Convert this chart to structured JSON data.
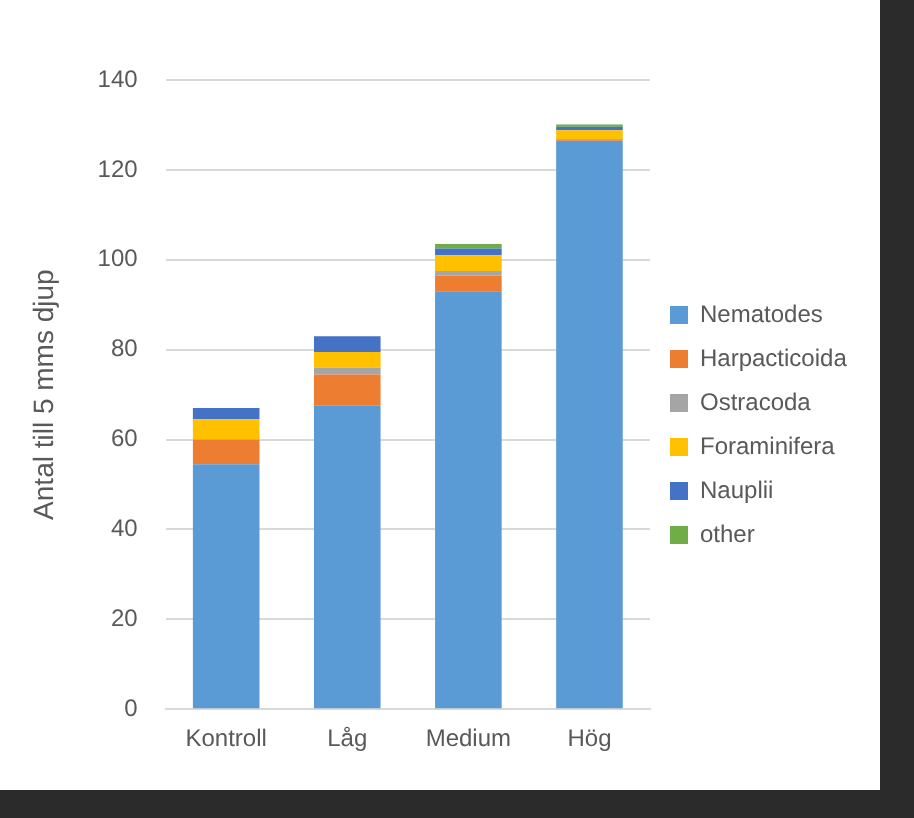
{
  "chart_data": {
    "type": "bar",
    "stacked": true,
    "ylabel": "Antal till 5 mms djup",
    "categories": [
      "Kontroll",
      "Låg",
      "Medium",
      "Hög"
    ],
    "series": [
      {
        "name": "Nematodes",
        "color": "#5b9bd5",
        "values": [
          54.5,
          67.5,
          93,
          126.5
        ]
      },
      {
        "name": "Harpacticoida",
        "color": "#ed7d31",
        "values": [
          5.5,
          7,
          3.5,
          0.3
        ]
      },
      {
        "name": "Ostracoda",
        "color": "#a5a5a5",
        "values": [
          null,
          1.5,
          1,
          0
        ]
      },
      {
        "name": "Foraminifera",
        "color": "#ffc000",
        "values": [
          4.5,
          3.5,
          3.5,
          2
        ]
      },
      {
        "name": "Nauplii",
        "color": "#4472c4",
        "values": [
          2.5,
          3.5,
          1.5,
          0.8
        ]
      },
      {
        "name": "other",
        "color": "#70ad47",
        "values": [
          0,
          0,
          1,
          0.5
        ]
      }
    ],
    "ylim": [
      0,
      140
    ],
    "yticks": [
      0,
      20,
      40,
      60,
      80,
      100,
      120,
      140
    ],
    "grid": "y",
    "legend": "right"
  }
}
